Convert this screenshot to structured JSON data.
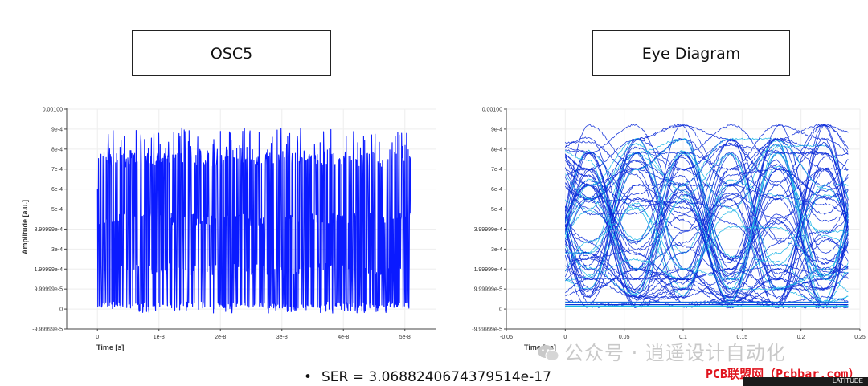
{
  "titles": {
    "left": "OSC5",
    "right": "Eye Diagram"
  },
  "bullet": "SER = 3.0688240674379514e-17",
  "watermark": {
    "text": "公众号 · 逍遥设计自动化",
    "site": "PCB联盟网（Pcbbar.com）",
    "logo_text": "LATITUDE"
  },
  "colors": {
    "trace": "#0a1aff",
    "eye_dense": "#0a2ad8",
    "eye_light": "#19b4e6",
    "grid": "#eeeeee",
    "axis": "#444444"
  },
  "chart_data": [
    {
      "type": "line",
      "title": "OSC5",
      "xlabel": "Time [s]",
      "ylabel": "Amplitude [a.u.]",
      "xlim": [
        -5e-09,
        5.5e-08
      ],
      "ylim": [
        -0.0001,
        0.001
      ],
      "x_ticks": [
        0,
        1e-08,
        2e-08,
        3e-08,
        4e-08,
        5e-08
      ],
      "x_tick_labels": [
        "0",
        "1e-8",
        "2e-8",
        "3e-8",
        "4e-8",
        "5e-8"
      ],
      "y_ticks": [
        -9.99999e-05,
        0,
        9.99999e-05,
        0.000199999,
        0.0003,
        0.000399999,
        0.0005,
        0.0006,
        0.0007,
        0.0008,
        0.0009,
        0.001
      ],
      "y_tick_labels": [
        "-9.99999e-5",
        "0",
        "9.99999e-5",
        "1.99999e-4",
        "3e-4",
        "3.99999e-4",
        "5e-4",
        "6e-4",
        "7e-4",
        "8e-4",
        "9e-4",
        "0.00100"
      ],
      "series": [
        {
          "x_range": [
            0,
            5.1e-08
          ],
          "levels": [
            1e-05,
            0.0002,
            0.00045,
            0.00075
          ],
          "y_range": [
            5e-06,
            0.00091
          ]
        }
      ]
    },
    {
      "type": "line",
      "title": "Eye Diagram",
      "xlabel": "Time [ns]",
      "ylabel": "",
      "xlim": [
        -0.05,
        0.25
      ],
      "ylim": [
        -0.0001,
        0.001
      ],
      "x_ticks": [
        -0.05,
        0,
        0.05,
        0.1,
        0.15,
        0.2,
        0.25
      ],
      "x_tick_labels": [
        "-0.05",
        "0",
        "0.05",
        "0.1",
        "0.15",
        "0.2",
        "0.25"
      ],
      "y_ticks": [
        -9.99999e-05,
        0,
        9.99999e-05,
        0.000199999,
        0.0003,
        0.000399999,
        0.0005,
        0.0006,
        0.0007,
        0.0008,
        0.0009,
        0.001
      ],
      "y_tick_labels": [
        "-9.99999e-5",
        "0",
        "9.99999e-5",
        "1.99999e-4",
        "3e-4",
        "3.99999e-4",
        "5e-4",
        "6e-4",
        "7e-4",
        "8e-4",
        "9e-4",
        "0.00100"
      ],
      "series": [
        {
          "x_range": [
            0,
            0.24
          ],
          "peak_times": [
            0.02,
            0.06,
            0.1,
            0.14,
            0.18,
            0.22
          ],
          "y_range": [
            1e-05,
            0.00092
          ]
        }
      ]
    }
  ]
}
